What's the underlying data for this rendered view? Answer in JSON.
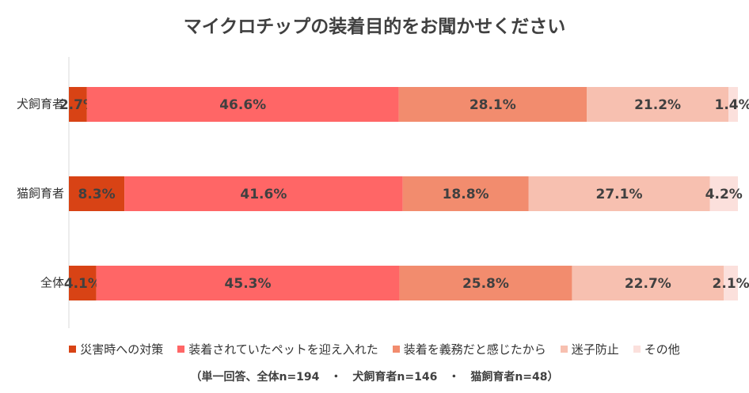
{
  "chart_data": {
    "type": "bar",
    "orientation": "horizontal",
    "stacked": true,
    "title": "マイクロチップの装着目的をお聞かせください",
    "categories": [
      "犬飼育者",
      "猫飼育者",
      "全体"
    ],
    "series": [
      {
        "name": "災害時への対策",
        "color": "#d84315",
        "values": [
          2.7,
          8.3,
          4.1
        ],
        "labels": [
          "2.7%",
          "8.3%",
          "4.1%"
        ]
      },
      {
        "name": "装着されていたペットを迎え入れた",
        "color": "#ff6666",
        "values": [
          46.6,
          41.6,
          45.3
        ],
        "labels": [
          "46.6%",
          "41.6%",
          "45.3%"
        ]
      },
      {
        "name": "装着を義務だと感じたから",
        "color": "#f28c6e",
        "values": [
          28.1,
          18.8,
          25.8
        ],
        "labels": [
          "28.1%",
          "18.8%",
          "25.8%"
        ]
      },
      {
        "name": "迷子防止",
        "color": "#f7c0b0",
        "values": [
          21.2,
          27.1,
          22.7
        ],
        "labels": [
          "21.2%",
          "27.1%",
          "22.7%"
        ]
      },
      {
        "name": "その他",
        "color": "#fbe0dc",
        "values": [
          1.4,
          4.2,
          2.1
        ],
        "labels": [
          "1.4%",
          "4.2%",
          "2.1%"
        ]
      }
    ],
    "xlim": [
      0,
      100
    ],
    "grid": false,
    "legend_position": "bottom"
  },
  "note": "（単一回答、全体n=194　・　犬飼育者n=146　・　猫飼育者n=48）"
}
